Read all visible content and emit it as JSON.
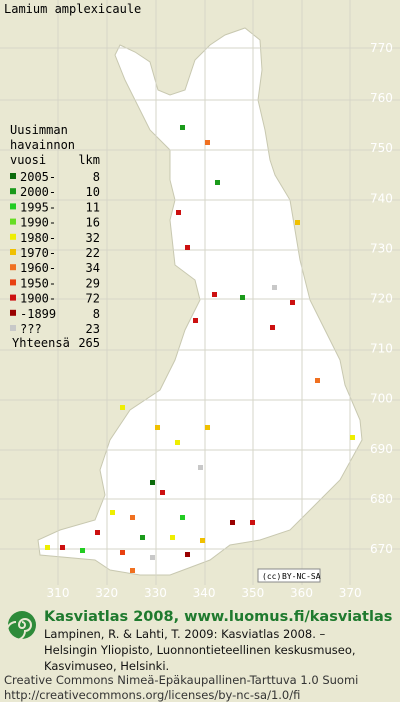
{
  "title": "Lamium amplexicaule",
  "legend": {
    "heading": [
      "Uusimman",
      "havainnon"
    ],
    "col_year": "vuosi",
    "col_count": "lkm",
    "rows": [
      {
        "label": "2005-",
        "count": 8,
        "color": "#0a6a0a"
      },
      {
        "label": "2000-",
        "count": 10,
        "color": "#1a9a1a"
      },
      {
        "label": "1995-",
        "count": 11,
        "color": "#22cc22"
      },
      {
        "label": "1990-",
        "count": 16,
        "color": "#66dd22"
      },
      {
        "label": "1980-",
        "count": 32,
        "color": "#eeee00"
      },
      {
        "label": "1970-",
        "count": 22,
        "color": "#f0c000"
      },
      {
        "label": "1960-",
        "count": 34,
        "color": "#f07020"
      },
      {
        "label": "1950-",
        "count": 29,
        "color": "#e84010"
      },
      {
        "label": "1900-",
        "count": 72,
        "color": "#cc1010"
      },
      {
        "label": "-1899",
        "count": 8,
        "color": "#990000"
      },
      {
        "label": "???",
        "count": 23,
        "color": "#c8c8c8"
      }
    ],
    "total_label": "Yhteensä",
    "total": 265
  },
  "grid": {
    "y_labels": [
      "770",
      "760",
      "750",
      "740",
      "730",
      "720",
      "710",
      "700",
      "690",
      "680",
      "670"
    ],
    "x_labels": [
      "310",
      "320",
      "330",
      "340",
      "350",
      "360",
      "370"
    ]
  },
  "license_badge": "BY-NC-SA",
  "footer": {
    "site": "Kasviatlas 2008, www.luomus.fi/kasviatlas",
    "citation": [
      "Lampinen, R. & Lahti, T. 2009: Kasviatlas 2008. –",
      "Helsingin Yliopisto, Luonnontieteellinen keskusmuseo,",
      "Kasvimuseo, Helsinki."
    ],
    "license": [
      "Creative Commons Nimeä-Epäkaupallinen-Tarttuva 1.0 Suomi",
      "http://creativecommons.org/licenses/by-nc-sa/1.0/fi"
    ]
  }
}
